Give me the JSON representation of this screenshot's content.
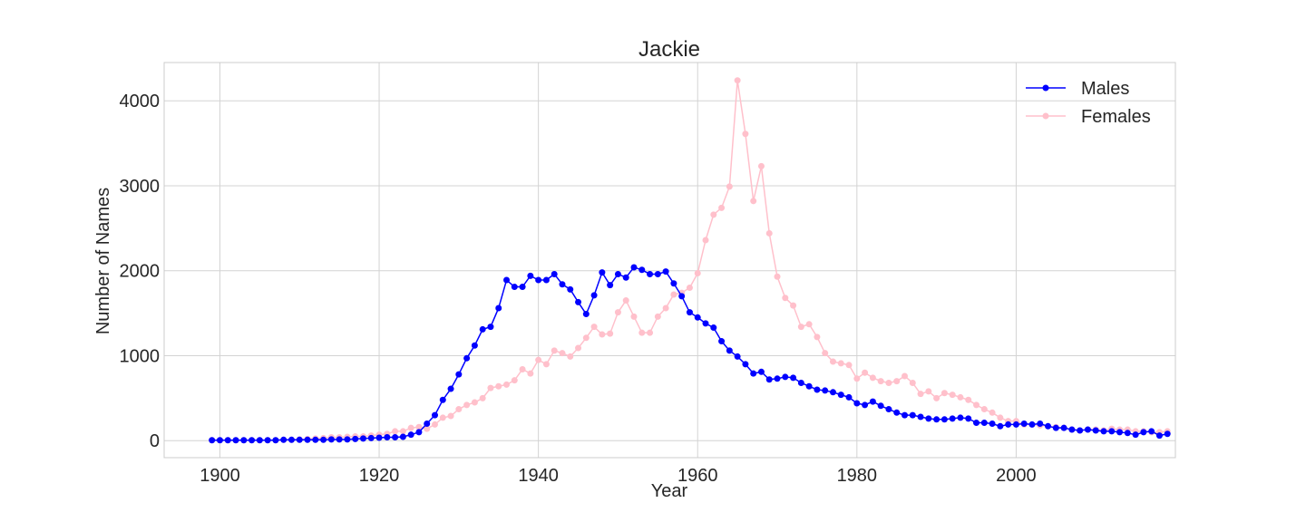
{
  "chart_data": {
    "type": "line",
    "title": "Jackie",
    "xlabel": "Year",
    "ylabel": "Number of Names",
    "xlim": [
      1893,
      2020
    ],
    "ylim": [
      -200,
      4450
    ],
    "xticks": [
      1900,
      1920,
      1940,
      1960,
      1980,
      2000
    ],
    "yticks": [
      0,
      1000,
      2000,
      3000,
      4000
    ],
    "grid": true,
    "legend": "top-right",
    "x_start": 1899,
    "series": [
      {
        "name": "Males",
        "color": "#0000ff",
        "values": [
          5,
          5,
          5,
          5,
          5,
          5,
          5,
          5,
          5,
          10,
          10,
          10,
          10,
          10,
          10,
          15,
          15,
          15,
          20,
          25,
          30,
          35,
          40,
          40,
          45,
          70,
          100,
          200,
          300,
          480,
          610,
          780,
          970,
          1120,
          1310,
          1340,
          1560,
          1890,
          1810,
          1810,
          1940,
          1890,
          1890,
          1960,
          1840,
          1780,
          1630,
          1490,
          1710,
          1980,
          1830,
          1960,
          1920,
          2040,
          2010,
          1960,
          1960,
          1990,
          1850,
          1700,
          1510,
          1450,
          1380,
          1330,
          1170,
          1060,
          990,
          900,
          790,
          810,
          720,
          730,
          750,
          740,
          680,
          640,
          600,
          590,
          570,
          540,
          510,
          440,
          420,
          460,
          410,
          370,
          330,
          300,
          300,
          280,
          260,
          250,
          250,
          260,
          270,
          260,
          210,
          210,
          200,
          170,
          190,
          190,
          200,
          190,
          200,
          170,
          150,
          150,
          130,
          120,
          130,
          120,
          110,
          110,
          100,
          90,
          70,
          100,
          110,
          60,
          80
        ]
      },
      {
        "name": "Females",
        "color": "#ffc0cb",
        "values": [
          5,
          5,
          5,
          5,
          5,
          5,
          5,
          5,
          5,
          10,
          10,
          15,
          20,
          25,
          30,
          40,
          40,
          45,
          50,
          50,
          60,
          70,
          80,
          110,
          110,
          150,
          160,
          140,
          190,
          270,
          290,
          370,
          420,
          450,
          500,
          620,
          640,
          660,
          710,
          840,
          790,
          950,
          900,
          1060,
          1030,
          990,
          1090,
          1210,
          1340,
          1250,
          1260,
          1510,
          1650,
          1460,
          1270,
          1270,
          1460,
          1560,
          1720,
          1740,
          1800,
          1970,
          2360,
          2660,
          2740,
          2990,
          4240,
          3610,
          2820,
          3230,
          2440,
          1930,
          1680,
          1590,
          1340,
          1370,
          1220,
          1030,
          930,
          910,
          890,
          730,
          800,
          740,
          700,
          680,
          700,
          760,
          680,
          550,
          580,
          500,
          560,
          540,
          510,
          480,
          420,
          370,
          330,
          270,
          230,
          230,
          190,
          190,
          180,
          170,
          160,
          150,
          130,
          120,
          130,
          130,
          120,
          140,
          130,
          130,
          110,
          110,
          100,
          100,
          110
        ]
      }
    ]
  }
}
